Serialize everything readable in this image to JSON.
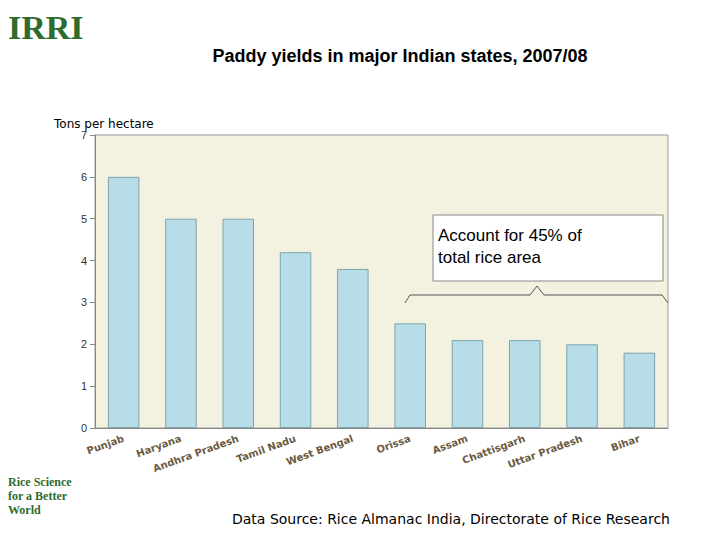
{
  "chart_data": {
    "type": "bar",
    "title": "Paddy yields in major Indian states, 2007/08",
    "ylabel": "Tons per hectare",
    "categories": [
      "Punjab",
      "Haryana",
      "Andhra Pradesh",
      "Tamil Nadu",
      "West Bengal",
      "Orissa",
      "Assam",
      "Chattisgarh",
      "Uttar Pradesh",
      "Bihar"
    ],
    "values": [
      6.0,
      5.0,
      5.0,
      4.2,
      3.8,
      2.5,
      2.1,
      2.1,
      2.0,
      1.8
    ],
    "color": "#b7dde8",
    "ylim": [
      0,
      7
    ],
    "yticks": [
      0,
      1,
      2,
      3,
      4,
      5,
      6,
      7
    ],
    "grid": false,
    "annotation": "Account for 45% of total rice area",
    "source": "Data Source: Rice Almanac India, Directorate of Rice Research",
    "logo": "IRRI",
    "logo_tagline": "Rice Science for a Better World"
  }
}
